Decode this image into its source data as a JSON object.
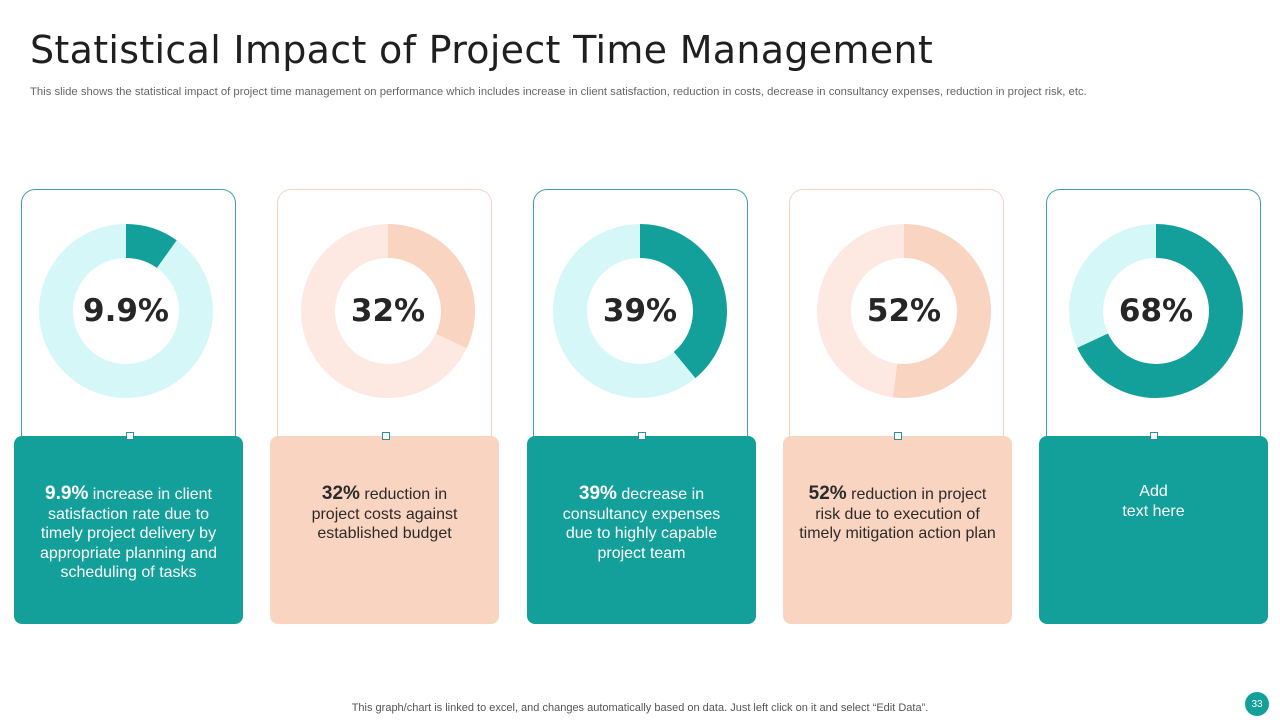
{
  "slide": {
    "title": "Statistical Impact of Project Time Management",
    "subtitle": "This slide shows the statistical impact of project time management on performance which includes increase in client satisfaction, reduction in costs, decrease in consultancy expenses, reduction in project risk, etc.",
    "footnote": "This graph/chart is linked to excel,  and changes automatically based on data. Just left click on it and select “Edit Data”.",
    "page_number": "33"
  },
  "colors": {
    "teal": "#14a09a",
    "teal_light": "#d6f7f7",
    "peach": "#f9d4c0",
    "peach_light": "#fde9e1"
  },
  "cards": [
    {
      "pct_label": "9.9%",
      "desc": "increase in client satisfaction rate due to timely project delivery by appropriate planning and scheduling of tasks",
      "theme": "teal"
    },
    {
      "pct_label": "32%",
      "desc": "reduction in project costs against established budget",
      "theme": "peach"
    },
    {
      "pct_label": "39%",
      "desc": "decrease in consultancy  expenses due to highly capable project team",
      "theme": "teal"
    },
    {
      "pct_label": "52%",
      "desc": "reduction in project risk due to execution  of timely mitigation action plan",
      "theme": "peach"
    },
    {
      "placeholder": "Add\ntext here",
      "theme": "teal"
    }
  ],
  "chart_data": [
    {
      "type": "pie",
      "values": [
        9.9,
        90.1
      ],
      "center_label": "9.9%"
    },
    {
      "type": "pie",
      "values": [
        32,
        68
      ],
      "center_label": "32%"
    },
    {
      "type": "pie",
      "values": [
        39,
        61
      ],
      "center_label": "39%"
    },
    {
      "type": "pie",
      "values": [
        52,
        48
      ],
      "center_label": "52%"
    },
    {
      "type": "pie",
      "values": [
        68,
        32
      ],
      "center_label": "68%"
    }
  ]
}
